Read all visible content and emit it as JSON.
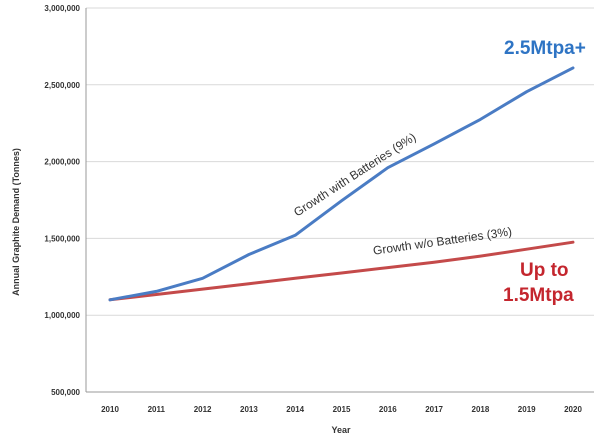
{
  "chart_data": {
    "type": "line",
    "xlabel": "Year",
    "ylabel": "Annual Graphite Demand (Tonnes)",
    "x": [
      "2010",
      "2011",
      "2012",
      "2013",
      "2014",
      "2015",
      "2016",
      "2017",
      "2018",
      "2019",
      "2020"
    ],
    "ylim": [
      500000,
      3000000
    ],
    "yticks": [
      500000,
      1000000,
      1500000,
      2000000,
      2500000,
      3000000
    ],
    "ytick_labels": [
      "500,000",
      "1,000,000",
      "1,500,000",
      "2,000,000",
      "2,500,000",
      "3,000,000"
    ],
    "grid": "horizontal",
    "series": [
      {
        "name": "Growth with Batteries (9%)",
        "color": "#4a7cc4",
        "values": [
          1100000,
          1155000,
          1240000,
          1395000,
          1520000,
          1745000,
          1960000,
          2115000,
          2275000,
          2455000,
          2610000
        ]
      },
      {
        "name": "Growth w/o Batteries (3%)",
        "color": "#c44a4a",
        "values": [
          1100000,
          1135000,
          1170000,
          1205000,
          1240000,
          1275000,
          1310000,
          1345000,
          1385000,
          1430000,
          1475000
        ]
      }
    ],
    "annotations": [
      {
        "text": "2.5Mtpa+",
        "color": "#2e74c4"
      },
      {
        "text": "Up to",
        "color": "#c4262e"
      },
      {
        "text": "1.5Mtpa",
        "color": "#c4262e"
      }
    ]
  }
}
